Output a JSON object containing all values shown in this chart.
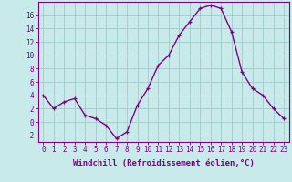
{
  "x": [
    0,
    1,
    2,
    3,
    4,
    5,
    6,
    7,
    8,
    9,
    10,
    11,
    12,
    13,
    14,
    15,
    16,
    17,
    18,
    19,
    20,
    21,
    22,
    23
  ],
  "y": [
    4,
    2,
    3,
    3.5,
    1,
    0.5,
    -0.5,
    -2.5,
    -1.5,
    2.5,
    5,
    8.5,
    10,
    13,
    15,
    17,
    17.5,
    17,
    13.5,
    7.5,
    5,
    4,
    2,
    0.5
  ],
  "line_color": "#800080",
  "marker_color": "#800080",
  "bg_color": "#c8eaea",
  "grid_color": "#a0cccc",
  "xlabel": "Windchill (Refroidissement éolien,°C)",
  "ylabel": "",
  "ylim": [
    -3,
    18
  ],
  "yticks": [
    -2,
    0,
    2,
    4,
    6,
    8,
    10,
    12,
    14,
    16
  ],
  "xticks": [
    0,
    1,
    2,
    3,
    4,
    5,
    6,
    7,
    8,
    9,
    10,
    11,
    12,
    13,
    14,
    15,
    16,
    17,
    18,
    19,
    20,
    21,
    22,
    23
  ],
  "font_size": 5.5,
  "xlabel_fontsize": 6.5,
  "marker_size": 3,
  "line_width": 1.0
}
